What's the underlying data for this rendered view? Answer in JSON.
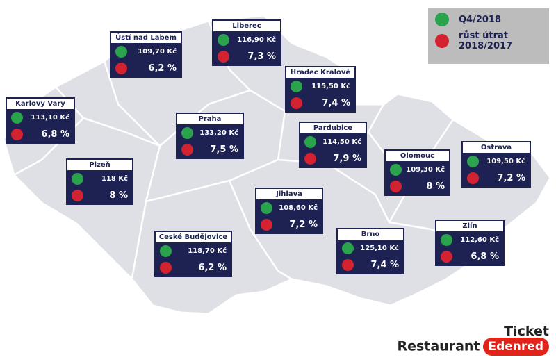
{
  "legend": {
    "items": [
      {
        "lines": [
          "Q4/2018"
        ]
      },
      {
        "lines": [
          "růst útrat",
          "2018/2017"
        ]
      }
    ]
  },
  "regions": [
    {
      "name": "Ústí nad Labem",
      "price": "109,70 Kč",
      "growth": "6,2 %"
    },
    {
      "name": "Liberec",
      "price": "116,90 Kč",
      "growth": "7,3 %"
    },
    {
      "name": "Hradec Králové",
      "price": "115,50 Kč",
      "growth": "7,4 %"
    },
    {
      "name": "Karlovy Vary",
      "price": "113,10 Kč",
      "growth": "6,8 %"
    },
    {
      "name": "Praha",
      "price": "133,20 Kč",
      "growth": "7,5 %"
    },
    {
      "name": "Pardubice",
      "price": "114,50 Kč",
      "growth": "7,9 %"
    },
    {
      "name": "Olomouc",
      "price": "109,30 Kč",
      "growth": "8 %"
    },
    {
      "name": "Ostrava",
      "price": "109,50 Kč",
      "growth": "7,2 %"
    },
    {
      "name": "Plzeň",
      "price": "118 Kč",
      "growth": "8 %"
    },
    {
      "name": "Jihlava",
      "price": "108,60 Kč",
      "growth": "7,2 %"
    },
    {
      "name": "České Budějovice",
      "price": "118,70 Kč",
      "growth": "6,2 %"
    },
    {
      "name": "Brno",
      "price": "125,10 Kč",
      "growth": "7,4 %"
    },
    {
      "name": "Zlín",
      "price": "112,60 Kč",
      "growth": "6,8 %"
    }
  ],
  "logo": {
    "line1": "Ticket",
    "line2": "Restaurant",
    "brand": "Edenred"
  }
}
